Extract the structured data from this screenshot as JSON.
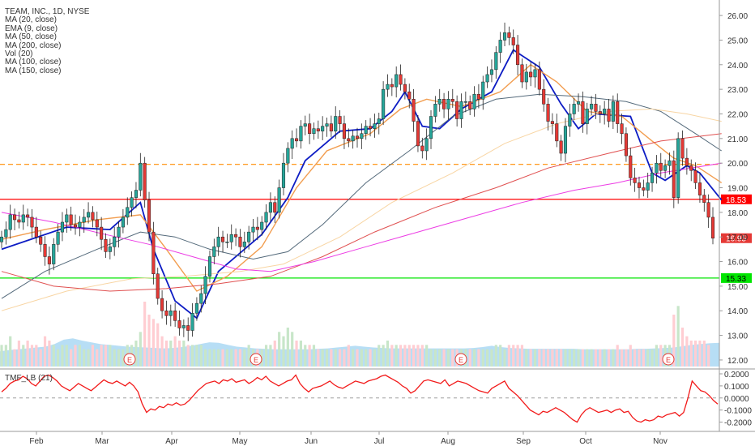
{
  "chart_data": {
    "type": "candlestick",
    "title": "TEAM, INC., 1D, NYSE",
    "indicators": [
      "MA (20, close)",
      "EMA (9, close)",
      "MA (50, close)",
      "MA (200, close)",
      "Vol (20)",
      "MA (100, close)",
      "MA (150, close)"
    ],
    "x_month_labels": [
      "Feb",
      "Mar",
      "Apr",
      "May",
      "Jun",
      "Jul",
      "Aug",
      "Sep",
      "Oct",
      "Nov"
    ],
    "y_ticks": [
      "26.00",
      "25.00",
      "24.00",
      "23.00",
      "22.00",
      "21.00",
      "20.00",
      "19.00",
      "18.00",
      "17.00",
      "16.00",
      "15.00",
      "14.00",
      "13.00",
      "12.00"
    ],
    "ylim": [
      11.8,
      26.3
    ],
    "horizontal_lines": [
      {
        "value": 18.53,
        "label": "18.53",
        "color": "#ff0000",
        "style": "solid"
      },
      {
        "value": 15.33,
        "label": "15.33",
        "color": "#00e600",
        "style": "solid"
      },
      {
        "value": 19.95,
        "label": "",
        "color": "#ff8c00",
        "style": "dashed"
      }
    ],
    "last_price": {
      "value": 16.95,
      "label": "16.95",
      "color": "#e53935"
    },
    "earnings_markers": [
      "E",
      "E",
      "E",
      "E"
    ],
    "close_series": [
      17.0,
      17.3,
      17.9,
      17.7,
      17.6,
      17.9,
      17.8,
      17.4,
      17.0,
      16.7,
      16.2,
      15.9,
      16.7,
      17.2,
      17.6,
      17.9,
      17.5,
      17.4,
      17.6,
      17.8,
      18.0,
      17.7,
      17.4,
      16.9,
      16.4,
      16.6,
      17.0,
      17.4,
      17.8,
      18.2,
      18.6,
      18.9,
      20.0,
      18.5,
      17.2,
      15.5,
      14.5,
      14.0,
      13.8,
      14.0,
      13.6,
      13.3,
      13.4,
      13.2,
      13.9,
      14.3,
      14.7,
      15.4,
      16.2,
      16.6,
      17.0,
      16.8,
      16.8,
      17.1,
      17.0,
      16.6,
      16.8,
      17.2,
      17.4,
      17.3,
      17.6,
      18.0,
      18.4,
      18.0,
      19.0,
      20.0,
      20.6,
      21.0,
      20.9,
      21.5,
      21.6,
      21.2,
      21.4,
      21.3,
      21.5,
      21.6,
      21.3,
      21.9,
      21.6,
      21.0,
      20.9,
      21.1,
      21.0,
      21.2,
      21.5,
      21.4,
      21.6,
      21.8,
      23.0,
      23.2,
      23.1,
      23.6,
      23.2,
      22.9,
      22.6,
      21.7,
      20.7,
      20.5,
      21.0,
      21.9,
      22.4,
      22.6,
      22.2,
      22.6,
      22.5,
      21.8,
      22.5,
      22.5,
      22.2,
      22.8,
      22.6,
      23.3,
      23.6,
      23.8,
      24.5,
      25.0,
      25.3,
      25.1,
      24.8,
      24.0,
      23.3,
      23.7,
      23.5,
      23.8,
      23.0,
      22.4,
      21.7,
      21.6,
      20.9,
      20.4,
      21.5,
      22.0,
      22.4,
      22.5,
      21.6,
      22.2,
      22.4,
      22.1,
      22.0,
      22.2,
      21.7,
      22.5,
      21.6,
      21.2,
      20.3,
      19.4,
      19.2,
      19.0,
      18.9,
      19.2,
      19.6,
      20.0,
      19.7,
      19.9,
      20.1,
      18.6,
      21.0,
      20.2,
      19.9,
      19.7,
      19.2,
      18.7,
      18.4,
      17.8,
      16.95
    ],
    "volume_series": [
      0.5,
      0.5,
      0.7,
      0.4,
      0.6,
      0.5,
      0.6,
      0.5,
      0.5,
      0.4,
      0.7,
      0.6,
      0.5,
      0.4,
      0.5,
      0.5,
      0.4,
      0.5,
      0.5,
      0.4,
      0.4,
      0.5,
      0.4,
      0.5,
      0.5,
      0.5,
      0.4,
      0.4,
      0.4,
      0.5,
      0.5,
      0.6,
      0.8,
      1.5,
      1.2,
      1.1,
      1.0,
      0.7,
      0.6,
      0.6,
      0.7,
      0.6,
      0.6,
      0.5,
      0.5,
      0.5,
      0.5,
      0.4,
      0.4,
      0.4,
      0.4,
      0.4,
      0.4,
      0.4,
      0.4,
      0.4,
      0.4,
      0.5,
      0.4,
      0.4,
      0.4,
      0.5,
      0.5,
      0.6,
      0.8,
      0.7,
      0.9,
      0.8,
      0.6,
      0.6,
      0.5,
      0.5,
      0.5,
      0.4,
      0.4,
      0.4,
      0.4,
      0.4,
      0.4,
      0.4,
      0.5,
      0.4,
      0.4,
      0.4,
      0.4,
      0.4,
      0.4,
      0.5,
      0.5,
      0.6,
      0.5,
      0.5,
      0.5,
      0.5,
      0.5,
      0.5,
      0.5,
      0.5,
      0.5,
      0.4,
      0.4,
      0.4,
      0.4,
      0.4,
      0.4,
      0.4,
      0.4,
      0.4,
      0.4,
      0.4,
      0.4,
      0.4,
      0.4,
      0.4,
      0.5,
      0.5,
      0.4,
      0.5,
      0.5,
      0.5,
      0.5,
      0.4,
      0.4,
      0.4,
      0.4,
      0.4,
      0.4,
      0.4,
      0.4,
      0.4,
      0.4,
      0.4,
      0.4,
      0.4,
      0.4,
      0.4,
      0.4,
      0.4,
      0.4,
      0.4,
      0.4,
      0.4,
      0.5,
      0.4,
      0.4,
      0.5,
      0.4,
      0.4,
      0.4,
      0.4,
      0.4,
      0.5,
      0.5,
      0.5,
      0.5,
      1.2,
      1.4,
      0.9,
      0.7,
      0.6,
      0.6,
      0.6,
      0.6,
      0.5
    ],
    "moving_averages": [
      {
        "name": "EMA (9, close)",
        "color": "#0d1cc4",
        "width": 1.8,
        "values": [
          [
            0,
            16.5
          ],
          [
            15,
            17.4
          ],
          [
            25,
            17.3
          ],
          [
            32,
            18.4
          ],
          [
            35,
            16.5
          ],
          [
            40,
            14.4
          ],
          [
            45,
            13.7
          ],
          [
            50,
            15.6
          ],
          [
            60,
            17.1
          ],
          [
            66,
            18.6
          ],
          [
            70,
            20.1
          ],
          [
            78,
            21.3
          ],
          [
            85,
            21.4
          ],
          [
            90,
            22.1
          ],
          [
            93,
            22.9
          ],
          [
            97,
            21.5
          ],
          [
            101,
            21.4
          ],
          [
            106,
            22.2
          ],
          [
            113,
            22.9
          ],
          [
            118,
            24.6
          ],
          [
            124,
            23.9
          ],
          [
            129,
            22.4
          ],
          [
            133,
            21.4
          ],
          [
            137,
            22.0
          ],
          [
            145,
            21.9
          ],
          [
            150,
            19.6
          ],
          [
            153,
            19.3
          ],
          [
            158,
            19.9
          ],
          [
            161,
            19.6
          ],
          [
            166,
            18.5
          ]
        ]
      },
      {
        "name": "MA (20, close)",
        "color": "#f29d4f",
        "width": 1.4,
        "values": [
          [
            0,
            16.9
          ],
          [
            10,
            17.3
          ],
          [
            22,
            17.7
          ],
          [
            32,
            17.9
          ],
          [
            38,
            16.5
          ],
          [
            45,
            14.8
          ],
          [
            52,
            15.4
          ],
          [
            60,
            16.6
          ],
          [
            68,
            19.0
          ],
          [
            75,
            20.5
          ],
          [
            85,
            21.2
          ],
          [
            92,
            22.2
          ],
          [
            98,
            22.6
          ],
          [
            106,
            22.3
          ],
          [
            115,
            22.9
          ],
          [
            122,
            24.0
          ],
          [
            128,
            23.3
          ],
          [
            135,
            22.1
          ],
          [
            143,
            21.9
          ],
          [
            150,
            20.9
          ],
          [
            155,
            20.2
          ],
          [
            160,
            19.9
          ],
          [
            166,
            19.2
          ]
        ]
      },
      {
        "name": "MA (50, close)",
        "color": "#546a7b",
        "width": 1.0,
        "values": [
          [
            0,
            14.5
          ],
          [
            10,
            15.6
          ],
          [
            22,
            16.5
          ],
          [
            32,
            17.2
          ],
          [
            40,
            17.0
          ],
          [
            48,
            16.5
          ],
          [
            58,
            16.1
          ],
          [
            66,
            16.4
          ],
          [
            74,
            17.5
          ],
          [
            84,
            19.2
          ],
          [
            94,
            20.5
          ],
          [
            104,
            21.9
          ],
          [
            114,
            22.6
          ],
          [
            124,
            22.8
          ],
          [
            134,
            22.7
          ],
          [
            144,
            22.5
          ],
          [
            152,
            22.1
          ],
          [
            160,
            21.2
          ],
          [
            166,
            20.5
          ]
        ]
      },
      {
        "name": "MA (100, close)",
        "color": "#f8d5a3",
        "width": 1.0,
        "values": [
          [
            0,
            14.0
          ],
          [
            15,
            14.8
          ],
          [
            30,
            15.3
          ],
          [
            42,
            15.4
          ],
          [
            55,
            15.6
          ],
          [
            65,
            15.9
          ],
          [
            78,
            17.0
          ],
          [
            90,
            18.4
          ],
          [
            104,
            19.6
          ],
          [
            116,
            20.8
          ],
          [
            128,
            21.6
          ],
          [
            140,
            22.1
          ],
          [
            150,
            22.2
          ],
          [
            158,
            22.0
          ],
          [
            166,
            21.7
          ]
        ]
      },
      {
        "name": "MA (150, close)",
        "color": "#e05050",
        "width": 1.0,
        "values": [
          [
            0,
            15.6
          ],
          [
            12,
            15.0
          ],
          [
            25,
            14.8
          ],
          [
            38,
            14.9
          ],
          [
            50,
            15.1
          ],
          [
            62,
            15.4
          ],
          [
            74,
            16.2
          ],
          [
            86,
            17.2
          ],
          [
            100,
            18.2
          ],
          [
            114,
            19.0
          ],
          [
            126,
            19.8
          ],
          [
            140,
            20.4
          ],
          [
            152,
            20.9
          ],
          [
            166,
            21.2
          ]
        ]
      },
      {
        "name": "MA (200, close)",
        "color": "#ec3ce4",
        "width": 1.0,
        "values": [
          [
            0,
            18.0
          ],
          [
            12,
            17.6
          ],
          [
            24,
            17.1
          ],
          [
            34,
            16.7
          ],
          [
            44,
            16.2
          ],
          [
            54,
            15.7
          ],
          [
            62,
            15.6
          ],
          [
            72,
            16.0
          ],
          [
            84,
            16.6
          ],
          [
            96,
            17.2
          ],
          [
            108,
            17.8
          ],
          [
            120,
            18.4
          ],
          [
            132,
            18.9
          ],
          [
            142,
            19.2
          ],
          [
            152,
            19.6
          ],
          [
            166,
            20.0
          ]
        ]
      }
    ],
    "volume_ma": [
      0.35,
      0.38,
      0.4,
      0.42,
      0.44,
      0.46,
      0.52,
      0.62,
      0.65,
      0.6,
      0.56,
      0.52,
      0.5,
      0.48,
      0.46,
      0.45,
      0.44,
      0.43,
      0.42,
      0.43,
      0.45,
      0.48,
      0.52,
      0.56,
      0.55,
      0.5,
      0.46,
      0.44,
      0.42,
      0.41,
      0.4,
      0.4,
      0.4,
      0.4,
      0.4,
      0.41,
      0.42,
      0.44,
      0.46,
      0.48,
      0.46,
      0.44,
      0.43,
      0.42,
      0.42,
      0.42,
      0.42,
      0.42,
      0.42,
      0.42,
      0.42,
      0.42,
      0.43,
      0.45,
      0.48,
      0.45,
      0.43,
      0.42,
      0.41,
      0.41,
      0.41,
      0.41,
      0.41,
      0.41,
      0.4,
      0.4,
      0.4,
      0.4,
      0.4,
      0.4,
      0.41,
      0.41,
      0.42,
      0.43,
      0.44,
      0.47,
      0.5,
      0.52,
      0.54,
      0.55
    ],
    "tmf": {
      "name": "TMF_LB (21)",
      "color": "#f21a1a",
      "y_ticks": [
        "0.2000",
        "0.1000",
        "0.0000",
        "-0.1000",
        "-0.2000"
      ],
      "ylim": [
        -0.25,
        0.2
      ],
      "values": [
        0.05,
        0.08,
        0.12,
        0.14,
        0.15,
        0.18,
        0.16,
        0.12,
        0.1,
        0.14,
        0.18,
        0.19,
        0.17,
        0.14,
        0.1,
        0.08,
        0.06,
        0.09,
        0.12,
        0.1,
        0.08,
        0.06,
        0.09,
        0.12,
        0.15,
        0.13,
        0.12,
        0.14,
        0.12,
        0.1,
        0.13,
        0.1,
        0.05,
        -0.05,
        -0.12,
        -0.09,
        -0.1,
        -0.07,
        -0.08,
        -0.05,
        -0.06,
        -0.04,
        -0.06,
        -0.05,
        -0.02,
        0.02,
        0.06,
        0.09,
        0.12,
        0.13,
        0.14,
        0.12,
        0.15,
        0.14,
        0.16,
        0.13,
        0.14,
        0.15,
        0.12,
        0.14,
        0.17,
        0.15,
        0.18,
        0.14,
        0.12,
        0.1,
        0.12,
        0.14,
        0.15,
        0.19,
        0.12,
        0.08,
        0.05,
        0.08,
        0.09,
        0.1,
        0.12,
        0.14,
        0.11,
        0.09,
        0.08,
        0.1,
        0.12,
        0.14,
        0.13,
        0.12,
        0.14,
        0.15,
        0.16,
        0.18,
        0.19,
        0.17,
        0.15,
        0.13,
        0.1,
        0.08,
        0.04,
        0.06,
        0.1,
        0.14,
        0.15,
        0.14,
        0.13,
        0.12,
        0.15,
        0.1,
        0.12,
        0.14,
        0.13,
        0.12,
        0.1,
        0.08,
        0.06,
        0.05,
        0.04,
        0.08,
        0.1,
        0.12,
        0.14,
        0.08,
        0.05,
        0.02,
        -0.02,
        -0.06,
        -0.1,
        -0.12,
        -0.14,
        -0.11,
        -0.12,
        -0.1,
        -0.08,
        -0.1,
        -0.12,
        -0.15,
        -0.18,
        -0.2,
        -0.14,
        -0.1,
        -0.08,
        -0.1,
        -0.12,
        -0.11,
        -0.1,
        -0.12,
        -0.1,
        -0.09,
        -0.12,
        -0.11,
        -0.16,
        -0.19,
        -0.2,
        -0.18,
        -0.19,
        -0.18,
        -0.15,
        -0.16,
        -0.14,
        -0.13,
        -0.12,
        -0.15,
        -0.12,
        0.0,
        0.14,
        0.1,
        0.06,
        0.05,
        0.02,
        -0.02,
        -0.05
      ]
    },
    "colors": {
      "up": "#26a69a",
      "down": "#e53935",
      "vol_up": "#c8e6c9",
      "vol_down": "#ffcdd2",
      "vol_ma_fill": "#9fd3f2",
      "axis_text": "#333333",
      "grid": "#e6e6e6"
    },
    "grid": false,
    "legend_position": "top-left"
  }
}
